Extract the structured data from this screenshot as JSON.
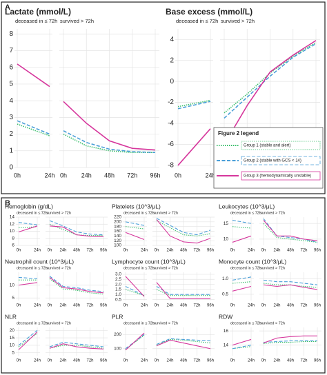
{
  "panels": [
    {
      "label": "A"
    },
    {
      "label": "B"
    }
  ],
  "legend": {
    "title": "Figure 2 legend",
    "entries": [
      {
        "name": "Group 1 (stable and alert)",
        "color": "#3dbf6e",
        "style": "dotted"
      },
      {
        "name": "Group 2 (stable with GCS < 14)",
        "color": "#4a9fd8",
        "style": "dashed"
      },
      {
        "name": "Group 3 (hemodynamically unstable)",
        "color": "#d6369c",
        "style": "solid"
      }
    ]
  },
  "chart_data": [
    {
      "type": "line",
      "title": "Lactate (mmol/L)",
      "ylim": [
        0,
        8.3
      ],
      "yticks": [
        0,
        1,
        2,
        3,
        4,
        5,
        6,
        7,
        8
      ],
      "subplots": [
        {
          "subtitle": "deceased in ≤ 72h",
          "categories": [
            "0h",
            "24h"
          ],
          "series": [
            {
              "values": [
                2.6,
                1.9
              ]
            },
            {
              "values": [
                2.8,
                2.0
              ]
            },
            {
              "values": [
                6.2,
                4.85
              ]
            }
          ]
        },
        {
          "subtitle": "survived > 72h",
          "categories": [
            "0h",
            "24h",
            "48h",
            "72h",
            "96h"
          ],
          "series": [
            {
              "values": [
                2.0,
                1.3,
                1.0,
                0.9,
                0.9
              ]
            },
            {
              "values": [
                2.2,
                1.5,
                1.1,
                0.95,
                0.9
              ]
            },
            {
              "values": [
                3.95,
                2.65,
                1.6,
                1.15,
                1.05
              ]
            }
          ]
        }
      ]
    },
    {
      "type": "line",
      "title": "Base excess (mmol/L)",
      "ylim": [
        -8.2,
        5
      ],
      "yticks": [
        -8,
        -6,
        -4,
        -2,
        0,
        2,
        4
      ],
      "subplots": [
        {
          "subtitle": "deceased in ≤ 72h",
          "categories": [
            "0h",
            "24h"
          ],
          "series": [
            {
              "values": [
                -2.4,
                -1.8
              ]
            },
            {
              "values": [
                -2.6,
                -1.9
              ]
            },
            {
              "values": [
                -8,
                -4.5
              ]
            }
          ]
        },
        {
          "subtitle": "survived > 72h",
          "categories": [
            "0h",
            "24h",
            "48h",
            "72h",
            "96h"
          ],
          "series": [
            {
              "values": [
                -3,
                -1.2,
                0.8,
                2.4,
                3.7
              ]
            },
            {
              "values": [
                -3.5,
                -1.5,
                0.5,
                2.3,
                3.6
              ]
            },
            {
              "values": [
                -6,
                -2.3,
                0.9,
                2.5,
                3.9
              ]
            }
          ]
        }
      ]
    },
    {
      "type": "line",
      "title": "Hemoglobin (g/dL)",
      "ylim": [
        6,
        14
      ],
      "yticks": [
        6,
        8,
        10,
        12,
        14
      ],
      "subplots": [
        {
          "subtitle": "deceased in ≤ 72h",
          "categories": [
            "0h",
            "24h"
          ],
          "series": [
            {
              "values": [
                11,
                11.3
              ]
            },
            {
              "values": [
                12.5,
                11.8
              ]
            },
            {
              "values": [
                9.8,
                11.5
              ]
            }
          ]
        },
        {
          "subtitle": "survived > 72h",
          "categories": [
            "0h",
            "24h",
            "48h",
            "72h",
            "96h"
          ],
          "series": [
            {
              "values": [
                12,
                10.5,
                9,
                8.8,
                8.8
              ]
            },
            {
              "values": [
                13,
                11.5,
                9.8,
                9.2,
                9
              ]
            },
            {
              "values": [
                11.5,
                11.2,
                9,
                8.6,
                8.5
              ]
            }
          ]
        }
      ]
    },
    {
      "type": "line",
      "title": "Platelets (10^3/μL)",
      "ylim": [
        100,
        220
      ],
      "yticks": [
        100,
        120,
        140,
        160,
        180,
        200,
        220
      ],
      "subplots": [
        {
          "subtitle": "deceased in ≤ 72h",
          "categories": [
            "0h",
            "24h"
          ],
          "series": [
            {
              "values": [
                180,
                170
              ]
            },
            {
              "values": [
                200,
                185
              ]
            },
            {
              "values": [
                155,
                125
              ]
            }
          ]
        },
        {
          "subtitle": "survived > 72h",
          "categories": [
            "0h",
            "24h",
            "48h",
            "72h",
            "96h"
          ],
          "series": [
            {
              "values": [
                205,
                175,
                145,
                140,
                150
              ]
            },
            {
              "values": [
                215,
                185,
                155,
                145,
                165
              ]
            },
            {
              "values": [
                210,
                140,
                115,
                110,
                130
              ]
            }
          ]
        }
      ]
    },
    {
      "type": "line",
      "title": "Leukocytes (10^3/μL)",
      "ylim": [
        8,
        17
      ],
      "yticks": [
        10,
        15
      ],
      "subplots": [
        {
          "subtitle": "deceased in ≤ 72h",
          "categories": [
            "0h",
            "24h"
          ],
          "series": [
            {
              "values": [
                14,
                13.5
              ]
            },
            {
              "values": [
                16,
                15
              ]
            },
            {
              "values": [
                9,
                11
              ]
            }
          ]
        },
        {
          "subtitle": "survived > 72h",
          "categories": [
            "0h",
            "24h",
            "48h",
            "72h",
            "96h"
          ],
          "series": [
            {
              "values": [
                15,
                10.5,
                10,
                9.5,
                9
              ]
            },
            {
              "values": [
                16.5,
                11,
                10.5,
                10,
                9
              ]
            },
            {
              "values": [
                16,
                11,
                11,
                10,
                9.5
              ]
            }
          ]
        }
      ]
    },
    {
      "type": "line",
      "title": "Neutrophil count (10^3/μL)",
      "ylim": [
        4,
        15
      ],
      "yticks": [
        5,
        10
      ],
      "subplots": [
        {
          "subtitle": "deceased in ≤ 72h",
          "categories": [
            "0h",
            "24h"
          ],
          "series": [
            {
              "values": [
                12,
                12
              ]
            },
            {
              "values": [
                13,
                12.5
              ]
            },
            {
              "values": [
                10,
                11
              ]
            }
          ]
        },
        {
          "subtitle": "survived > 72h",
          "categories": [
            "0h",
            "24h",
            "48h",
            "72h",
            "96h"
          ],
          "series": [
            {
              "values": [
                12.5,
                8.5,
                8,
                7,
                6.5
              ]
            },
            {
              "values": [
                13.5,
                9.5,
                9,
                8,
                7.5
              ]
            },
            {
              "values": [
                13,
                9,
                8.5,
                7.5,
                7
              ]
            }
          ]
        }
      ]
    },
    {
      "type": "line",
      "title": "Lymphocyte count (10^3/μL)",
      "ylim": [
        0.4,
        3.2
      ],
      "yticks": [
        0.5,
        {
          "value": 1,
          "label": "1.0"
        },
        1.5,
        {
          "value": 2,
          "label": "2.0"
        },
        2.5,
        {
          "value": 3,
          "label": "3.0"
        }
      ],
      "subplots": [
        {
          "subtitle": "deceased in ≤ 72h",
          "categories": [
            "0h",
            "24h"
          ],
          "series": [
            {
              "values": [
                1.5,
                0.9
              ]
            },
            {
              "values": [
                1.8,
                0.9
              ]
            },
            {
              "values": [
                2.8,
                0.8
              ]
            }
          ]
        },
        {
          "subtitle": "survived > 72h",
          "categories": [
            "0h",
            "24h",
            "48h",
            "72h",
            "96h"
          ],
          "series": [
            {
              "values": [
                1.5,
                0.9,
                0.9,
                0.9,
                0.9
              ]
            },
            {
              "values": [
                1.8,
                1.0,
                1.0,
                1.0,
                1.0
              ]
            },
            {
              "values": [
                2.2,
                0.6,
                0.6,
                0.6,
                0.6
              ]
            }
          ]
        }
      ]
    },
    {
      "type": "line",
      "title": "Monocyte count (10^3/μL)",
      "ylim": [
        0.3,
        1.2
      ],
      "yticks": [
        0.5,
        {
          "value": 1,
          "label": "1.0"
        }
      ],
      "subplots": [
        {
          "subtitle": "deceased in ≤ 72h",
          "categories": [
            "0h",
            "24h"
          ],
          "series": [
            {
              "values": [
                0.85,
                0.9
              ]
            },
            {
              "values": [
                0.95,
                1.05
              ]
            },
            {
              "values": [
                0.6,
                0.75
              ]
            }
          ]
        },
        {
          "subtitle": "survived > 72h",
          "categories": [
            "0h",
            "24h",
            "48h",
            "72h",
            "96h"
          ],
          "series": [
            {
              "values": [
                0.85,
                0.8,
                0.8,
                0.75,
                0.72
              ]
            },
            {
              "values": [
                0.95,
                0.9,
                0.9,
                0.85,
                0.8
              ]
            },
            {
              "values": [
                0.8,
                0.75,
                0.8,
                0.72,
                0.65
              ]
            }
          ]
        }
      ]
    },
    {
      "type": "line",
      "title": "NLR",
      "ylim": [
        3,
        22
      ],
      "yticks": [
        5,
        10,
        15,
        20
      ],
      "subplots": [
        {
          "subtitle": "deceased in ≤ 72h",
          "categories": [
            "0h",
            "24h"
          ],
          "series": [
            {
              "values": [
                9,
                18
              ]
            },
            {
              "values": [
                10,
                20
              ]
            },
            {
              "values": [
                7,
                19
              ]
            }
          ]
        },
        {
          "subtitle": "survived > 72h",
          "categories": [
            "0h",
            "24h",
            "48h",
            "72h",
            "96h"
          ],
          "series": [
            {
              "values": [
                8,
                10,
                10,
                9,
                8
              ]
            },
            {
              "values": [
                9,
                12,
                11,
                10,
                9
              ]
            },
            {
              "values": [
                8,
                11,
                9,
                8,
                7.5
              ]
            }
          ]
        }
      ]
    },
    {
      "type": "line",
      "title": "PLR",
      "ylim": [
        50,
        250
      ],
      "yticks": [
        100,
        200
      ],
      "subplots": [
        {
          "subtitle": "deceased in ≤ 72h",
          "categories": [
            "0h",
            "24h"
          ],
          "series": [
            {
              "values": [
                95,
                195
              ]
            },
            {
              "values": [
                100,
                200
              ]
            },
            {
              "values": [
                90,
                210
              ]
            }
          ]
        },
        {
          "subtitle": "survived > 72h",
          "categories": [
            "0h",
            "24h",
            "48h",
            "72h",
            "96h"
          ],
          "series": [
            {
              "values": [
                125,
                165,
                160,
                150,
                140
              ]
            },
            {
              "values": [
                130,
                170,
                165,
                160,
                155
              ]
            },
            {
              "values": [
                120,
                160,
                140,
                120,
                100
              ]
            }
          ]
        }
      ]
    },
    {
      "type": "line",
      "title": "RDW",
      "ylim": [
        12.5,
        16.5
      ],
      "yticks": [
        14,
        16
      ],
      "subplots": [
        {
          "subtitle": "deceased in ≤ 72h",
          "categories": [
            "0h",
            "24h"
          ],
          "series": [
            {
              "values": [
                13.5,
                13.8
              ]
            },
            {
              "values": [
                13.5,
                14
              ]
            },
            {
              "values": [
                14,
                14.8
              ]
            }
          ]
        },
        {
          "subtitle": "survived > 72h",
          "categories": [
            "0h",
            "24h",
            "48h",
            "72h",
            "96h"
          ],
          "series": [
            {
              "values": [
                14.2,
                14.4,
                14.4,
                14.5,
                14.5
              ]
            },
            {
              "values": [
                14.4,
                14.5,
                14.6,
                14.6,
                14.6
              ]
            },
            {
              "values": [
                14.3,
                15,
                15.2,
                15.3,
                15.3
              ]
            }
          ]
        }
      ]
    }
  ]
}
